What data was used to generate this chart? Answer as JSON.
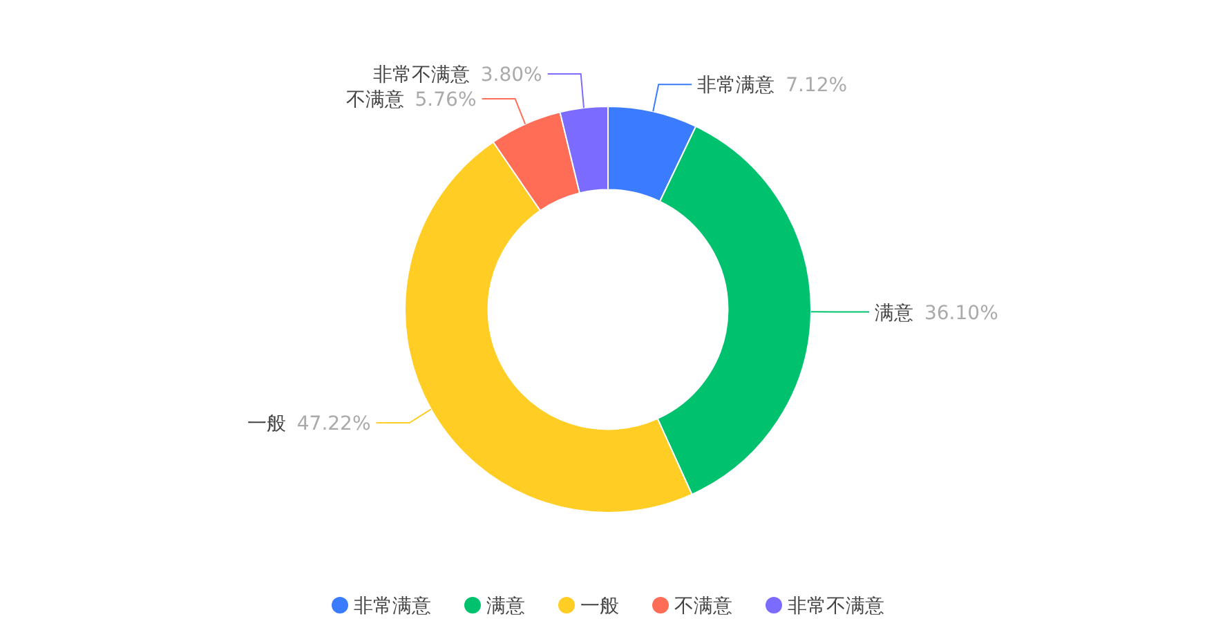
{
  "chart_data": {
    "type": "donut",
    "categories": [
      "非常满意",
      "满意",
      "一般",
      "不满意",
      "非常不满意"
    ],
    "values": [
      7.12,
      36.1,
      47.22,
      5.76,
      3.8
    ],
    "value_labels": [
      "7.12%",
      "36.10%",
      "47.22%",
      "5.76%",
      "3.80%"
    ],
    "colors": [
      "#3b7cff",
      "#00c26e",
      "#ffcd24",
      "#ff6d57",
      "#7b6cff"
    ],
    "legend": "bottom"
  }
}
